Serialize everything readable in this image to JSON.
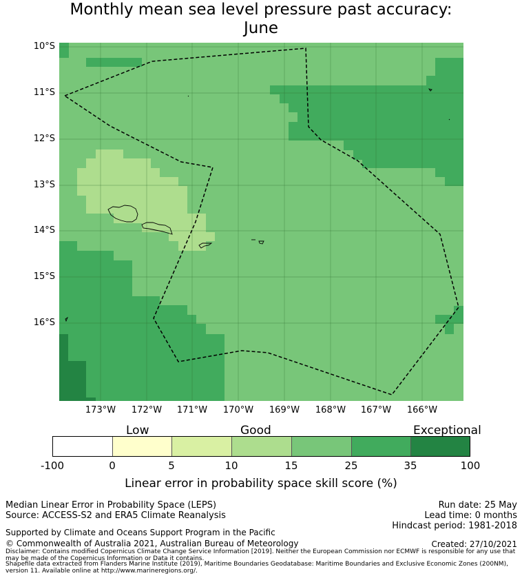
{
  "title_line1": "Monthly mean sea level pressure past accuracy:",
  "title_line2": "June",
  "map": {
    "lat_ticks": [
      "10°S",
      "11°S",
      "12°S",
      "13°S",
      "14°S",
      "15°S",
      "16°S"
    ],
    "lon_ticks": [
      "173°W",
      "172°W",
      "171°W",
      "170°W",
      "169°W",
      "168°W",
      "167°W",
      "166°W"
    ],
    "region_colors": {
      "good_light": "#aedd8e",
      "good": "#78c679",
      "very_good": "#41ab5d",
      "exceptional": "#238443"
    },
    "eez_boundary_style": "dashed black line",
    "land_masses": [
      "Upolu",
      "Savai'i",
      "Tutuila",
      "Manu'a Islands",
      "Swains Island",
      "Tokelau atolls"
    ]
  },
  "colorbar": {
    "categories": [
      "Low",
      "Good",
      "Exceptional"
    ],
    "ticks": [
      "-100",
      "0",
      "5",
      "10",
      "15",
      "25",
      "35",
      "100"
    ],
    "colors": [
      "#ffffff",
      "#ffffcc",
      "#d9f0a3",
      "#addd8e",
      "#78c679",
      "#41ab5d",
      "#238443"
    ],
    "label": "Linear error in probability space skill score (%)"
  },
  "footer": {
    "method": "Median Linear Error in Probability Space (LEPS)",
    "source": "Source: ACCESS-S2 and ERA5 Climate Reanalysis",
    "run_date": "Run date: 25 May",
    "lead_time": "Lead time: 0 months",
    "hindcast": "Hindcast period: 1981-2018",
    "supported": "Supported by Climate and Oceans Support Program in the Pacific",
    "copyright": "© Commonwealth of Australia 2021, Australian Bureau of Meteorology",
    "created": "Created: 27/10/2021",
    "disclaimer": "Disclaimer: Contains modified Copernicus Climate Change Service Information [2019]. Neither the European Commission nor ECMWF is responsible for any use that may be made of the Copernicus Information or Data it contains.",
    "shapefile": "Shapefile data extracted from Flanders Marine Institute (2019), Maritime Boundaries Geodatabase: Maritime Boundaries and Exclusive Economic Zones (200NM), version 11. Available online at http://www.marineregions.org/."
  }
}
